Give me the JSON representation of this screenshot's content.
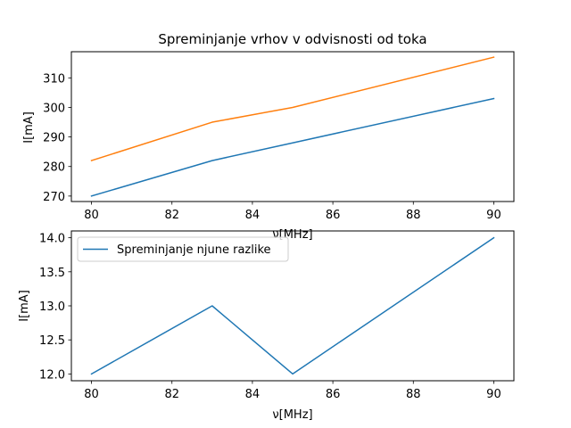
{
  "chart_data": [
    {
      "type": "line",
      "title": "Spreminjanje vrhov v odvisnosti od toka",
      "xlabel": "ν[MHz]",
      "ylabel": "I[mA]",
      "x": [
        80,
        83,
        85,
        90
      ],
      "xlim": [
        79.5,
        90.5
      ],
      "ylim": [
        268.15,
        318.85
      ],
      "xticks": [
        80,
        82,
        84,
        86,
        88,
        90
      ],
      "yticks": [
        270,
        280,
        290,
        300,
        310
      ],
      "grid": false,
      "series": [
        {
          "values": [
            270,
            282,
            288,
            303
          ],
          "color": "#1f77b4"
        },
        {
          "values": [
            282,
            295,
            300,
            317
          ],
          "color": "#ff7f0e"
        }
      ]
    },
    {
      "type": "line",
      "title": "",
      "xlabel": "ν[MHz]",
      "ylabel": "I[mA]",
      "x": [
        80,
        83,
        85,
        90
      ],
      "xlim": [
        79.5,
        90.5
      ],
      "ylim": [
        11.9,
        14.1
      ],
      "xticks": [
        80,
        82,
        84,
        86,
        88,
        90
      ],
      "yticks": [
        "12.0",
        "12.5",
        "13.0",
        "13.5",
        "14.0"
      ],
      "grid": false,
      "legend": "top-left",
      "series": [
        {
          "name": "Spreminjanje njune razlike",
          "values": [
            12,
            13,
            12,
            14
          ],
          "color": "#1f77b4"
        }
      ]
    }
  ]
}
